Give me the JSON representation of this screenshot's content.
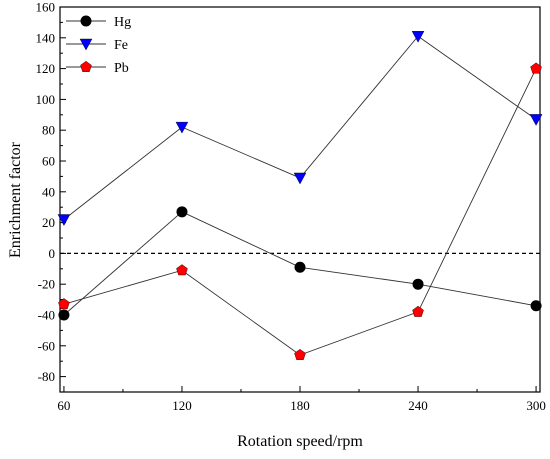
{
  "chart_data": {
    "type": "line",
    "xlabel": "Rotation speed/rpm",
    "ylabel": "Enrichment factor",
    "x": [
      60,
      120,
      180,
      240,
      300
    ],
    "xticks": [
      60,
      120,
      180,
      240,
      300
    ],
    "xlim": [
      58,
      302
    ],
    "ylim": [
      -90,
      160
    ],
    "yticks": [
      -80,
      -60,
      -40,
      -20,
      0,
      20,
      40,
      60,
      80,
      100,
      120,
      140,
      160
    ],
    "grid": false,
    "legend_position": "top-left",
    "reference_line": {
      "y": 0,
      "style": "dashed"
    },
    "series": [
      {
        "name": "Hg",
        "marker": "circle",
        "color": "#000000",
        "values": [
          -40,
          27,
          -9,
          -20,
          -34
        ]
      },
      {
        "name": "Fe",
        "marker": "triangle-down",
        "color": "#0000ff",
        "values": [
          22,
          82,
          49,
          141,
          87
        ]
      },
      {
        "name": "Pb",
        "marker": "pentagon",
        "color": "#ff0000",
        "values": [
          -33,
          -11,
          -66,
          -38,
          120
        ]
      }
    ]
  }
}
